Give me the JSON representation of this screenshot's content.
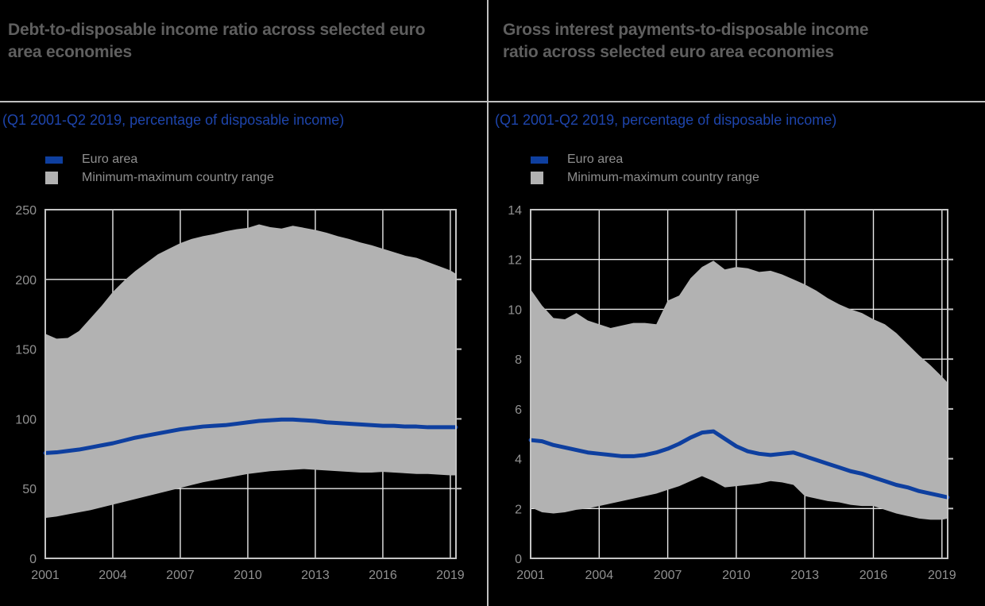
{
  "page": {
    "background": "#000000",
    "divider_color": "#c0c0c0"
  },
  "styles": {
    "title_color": "#5f5f5f",
    "subtitle_color": "#1e45ac",
    "tick_color": "#919191",
    "legend_text_color": "#8f8f8f",
    "grid_color": "#e8e8e8",
    "border_color": "#c4c4c4",
    "line_color": "#0e3f9f",
    "band_color": "#b2b2b2"
  },
  "chart_data": [
    {
      "type": "area",
      "title": "Debt-to-disposable income ratio across selected euro area economies",
      "subtitle": "(Q1 2001-Q2 2019, percentage of disposable income)",
      "legend": [
        {
          "label": "Euro area",
          "swatch": "line",
          "color": "#0e3f9f"
        },
        {
          "label": "Minimum-maximum country range",
          "swatch": "box",
          "color": "#b2b2b2"
        }
      ],
      "x_range": [
        2001,
        2019.25
      ],
      "y_range": [
        0,
        250
      ],
      "y_ticks": [
        0,
        50,
        100,
        150,
        200,
        250
      ],
      "x_tick_years": [
        2001,
        2004,
        2007,
        2010,
        2013,
        2016,
        2019
      ],
      "grid": true,
      "legend_position": "top-left",
      "x": [
        2001,
        2001.5,
        2002,
        2002.5,
        2003,
        2003.5,
        2004,
        2004.5,
        2005,
        2005.5,
        2006,
        2006.5,
        2007,
        2007.5,
        2008,
        2008.5,
        2009,
        2009.5,
        2010,
        2010.5,
        2011,
        2011.5,
        2012,
        2012.5,
        2013,
        2013.5,
        2014,
        2014.5,
        2015,
        2015.5,
        2016,
        2016.5,
        2017,
        2017.5,
        2018,
        2018.5,
        2019,
        2019.25
      ],
      "series": [
        {
          "name": "Euro area",
          "color": "#0e3f9f",
          "values": [
            75.5,
            76,
            77,
            78,
            79.5,
            81,
            82.5,
            84.5,
            86.5,
            88,
            89.5,
            91,
            92.5,
            93.5,
            94.5,
            95,
            95.5,
            96.5,
            97.5,
            98.5,
            99,
            99.5,
            99.5,
            99,
            98.5,
            97.5,
            97,
            96.5,
            96,
            95.5,
            95,
            95,
            94.5,
            94.5,
            94,
            94,
            94,
            94
          ]
        },
        {
          "name": "Maximum country",
          "values": [
            161,
            157.5,
            158,
            163,
            172,
            181,
            191,
            199,
            206,
            212,
            218,
            222,
            226,
            229,
            231,
            232.5,
            234.5,
            236,
            237,
            239.5,
            237.5,
            236.5,
            238.5,
            237,
            235.5,
            233.5,
            231,
            229,
            226.5,
            224.5,
            222,
            219.5,
            217,
            215.5,
            212.5,
            209.5,
            206.5,
            204
          ]
        },
        {
          "name": "Minimum country",
          "values": [
            29,
            30,
            31.5,
            33,
            34.5,
            36.5,
            38.5,
            40.5,
            42.5,
            44.5,
            46.5,
            48.5,
            50.5,
            52.5,
            54.5,
            56,
            57.5,
            59,
            60.5,
            61.5,
            62.5,
            63,
            63.5,
            64,
            63.5,
            63,
            62.5,
            62,
            61.5,
            61.5,
            62,
            61.5,
            61,
            60.5,
            60.5,
            60,
            59.5,
            59.5
          ]
        }
      ],
      "band": {
        "upper": "Maximum country",
        "lower": "Minimum country",
        "color": "#b2b2b2"
      }
    },
    {
      "type": "area",
      "title": "Gross interest payments-to-disposable income ratio across selected euro area economies",
      "subtitle": "(Q1 2001-Q2 2019, percentage of disposable income)",
      "legend": [
        {
          "label": "Euro area",
          "swatch": "line",
          "color": "#0e3f9f"
        },
        {
          "label": "Minimum-maximum country range",
          "swatch": "box",
          "color": "#b2b2b2"
        }
      ],
      "x_range": [
        2001,
        2019.25
      ],
      "y_range": [
        0,
        14
      ],
      "y_ticks": [
        0,
        2,
        4,
        6,
        8,
        10,
        12,
        14
      ],
      "x_tick_years": [
        2001,
        2004,
        2007,
        2010,
        2013,
        2016,
        2019
      ],
      "grid": true,
      "legend_position": "top-left",
      "x": [
        2001,
        2001.5,
        2002,
        2002.5,
        2003,
        2003.5,
        2004,
        2004.5,
        2005,
        2005.5,
        2006,
        2006.5,
        2007,
        2007.5,
        2008,
        2008.5,
        2009,
        2009.5,
        2010,
        2010.5,
        2011,
        2011.5,
        2012,
        2012.5,
        2013,
        2013.5,
        2014,
        2014.5,
        2015,
        2015.5,
        2016,
        2016.5,
        2017,
        2017.5,
        2018,
        2018.5,
        2019,
        2019.25
      ],
      "series": [
        {
          "name": "Euro area",
          "color": "#0e3f9f",
          "values": [
            4.75,
            4.7,
            4.55,
            4.45,
            4.35,
            4.25,
            4.2,
            4.15,
            4.1,
            4.1,
            4.15,
            4.25,
            4.4,
            4.6,
            4.85,
            5.05,
            5.1,
            4.8,
            4.5,
            4.3,
            4.2,
            4.15,
            4.2,
            4.25,
            4.1,
            3.95,
            3.8,
            3.65,
            3.5,
            3.4,
            3.25,
            3.1,
            2.95,
            2.85,
            2.7,
            2.6,
            2.5,
            2.45
          ]
        },
        {
          "name": "Maximum country",
          "values": [
            10.8,
            10.15,
            9.65,
            9.6,
            9.85,
            9.55,
            9.4,
            9.25,
            9.35,
            9.45,
            9.45,
            9.4,
            10.35,
            10.55,
            11.25,
            11.7,
            11.95,
            11.6,
            11.7,
            11.65,
            11.5,
            11.55,
            11.4,
            11.2,
            11.0,
            10.75,
            10.45,
            10.2,
            10.0,
            9.85,
            9.6,
            9.4,
            9.05,
            8.6,
            8.15,
            7.75,
            7.3,
            7.05
          ]
        },
        {
          "name": "Minimum country",
          "values": [
            2.05,
            1.85,
            1.8,
            1.85,
            1.95,
            2.0,
            2.1,
            2.2,
            2.3,
            2.4,
            2.5,
            2.6,
            2.75,
            2.9,
            3.1,
            3.3,
            3.1,
            2.85,
            2.9,
            2.95,
            3.0,
            3.1,
            3.05,
            2.95,
            2.5,
            2.4,
            2.3,
            2.25,
            2.15,
            2.1,
            2.1,
            1.95,
            1.8,
            1.7,
            1.6,
            1.55,
            1.55,
            1.6
          ]
        }
      ],
      "band": {
        "upper": "Maximum country",
        "lower": "Minimum country",
        "color": "#b2b2b2"
      }
    }
  ]
}
